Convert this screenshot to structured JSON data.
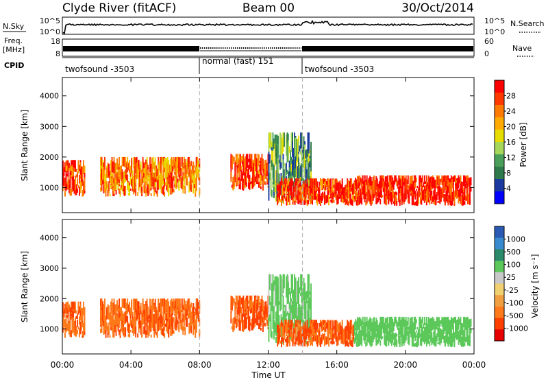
{
  "header": {
    "station": "Clyde River (fitACF)",
    "beam": "Beam 00",
    "date": "30/Oct/2014"
  },
  "noise_panel": {
    "left_label": "N.Sky",
    "right_label": "N.Search",
    "left_top_tick": "10^5",
    "left_bottom_tick": "10^0",
    "right_top_tick": "10^5",
    "right_bottom_tick": "10^0"
  },
  "freq_panel": {
    "left_label_1": "Freq.",
    "left_label_2": "[MHz]",
    "right_label": "Nave",
    "left_ticks": [
      "18",
      "8"
    ],
    "right_ticks": [
      "60",
      "0"
    ]
  },
  "cpid": {
    "label": "CPID",
    "segments": [
      {
        "name": "twofsound -3503",
        "start_hour": 0,
        "end_hour": 8
      },
      {
        "name": "normal (fast) 151",
        "start_hour": 8,
        "end_hour": 14
      },
      {
        "name": "twofsound -3503",
        "start_hour": 14,
        "end_hour": 24
      }
    ]
  },
  "power_panel": {
    "ylabel": "Slant Range [km]",
    "yticks": [
      "1000",
      "2000",
      "3000",
      "4000"
    ],
    "colorbar_label": "Power [dB]",
    "colorbar_ticks": [
      "28",
      "24",
      "20",
      "16",
      "12",
      "8",
      "4"
    ],
    "colorbar_colors": [
      "#ff0000",
      "#ff3a00",
      "#ff7a00",
      "#ffaa00",
      "#e6dc00",
      "#a6d65a",
      "#4aa05a",
      "#2e7a4a",
      "#1a3aa0",
      "#0000ff"
    ]
  },
  "velocity_panel": {
    "ylabel": "Slant Range [km]",
    "yticks": [
      "1000",
      "2000",
      "3000",
      "4000"
    ],
    "colorbar_label": "Velocity [m s⁻¹]",
    "colorbar_ticks": [
      "1000",
      "500",
      "100",
      "25",
      "-25",
      "-100",
      "-500",
      "-1000"
    ],
    "colorbar_colors": [
      "#2a5ab4",
      "#3a8ad0",
      "#2a8a6a",
      "#5cc85a",
      "#c8c8c8",
      "#f0d070",
      "#f0a040",
      "#ff7a1a",
      "#ff4000",
      "#e60000"
    ]
  },
  "xaxis": {
    "label": "Time UT",
    "ticks": [
      "00:00",
      "04:00",
      "08:00",
      "12:00",
      "16:00",
      "20:00",
      "00:00"
    ]
  },
  "chart_data": {
    "type": "heatmap",
    "title": "Clyde River (fitACF) Beam 00 30/Oct/2014",
    "xlabel": "Time UT",
    "ylabel": "Slant Range [km]",
    "xlim_hours": [
      0,
      24
    ],
    "ylim_km": [
      180,
      4600
    ],
    "power_db_range": [
      0,
      30
    ],
    "velocity_range": [
      -1000,
      1000
    ],
    "cpid_change_hours": [
      8,
      14
    ],
    "echo_regions": [
      {
        "start_hour": 0.0,
        "end_hour": 1.3,
        "range_min_km": 700,
        "range_max_km": 1900,
        "power_db": 25,
        "velocity": -400
      },
      {
        "start_hour": 2.2,
        "end_hour": 8.0,
        "range_min_km": 700,
        "range_max_km": 2000,
        "power_db": 22,
        "velocity": -450
      },
      {
        "start_hour": 9.8,
        "end_hour": 12.0,
        "range_min_km": 900,
        "range_max_km": 2100,
        "power_db": 26,
        "velocity": -550
      },
      {
        "start_hour": 12.0,
        "end_hour": 14.5,
        "range_min_km": 500,
        "range_max_km": 2800,
        "power_db": 10,
        "velocity": 200
      },
      {
        "start_hour": 12.5,
        "end_hour": 17.0,
        "range_min_km": 400,
        "range_max_km": 1300,
        "power_db": 27,
        "velocity": -500
      },
      {
        "start_hour": 17.0,
        "end_hour": 23.8,
        "range_min_km": 400,
        "range_max_km": 1400,
        "power_db": 28,
        "velocity": 250
      }
    ]
  }
}
